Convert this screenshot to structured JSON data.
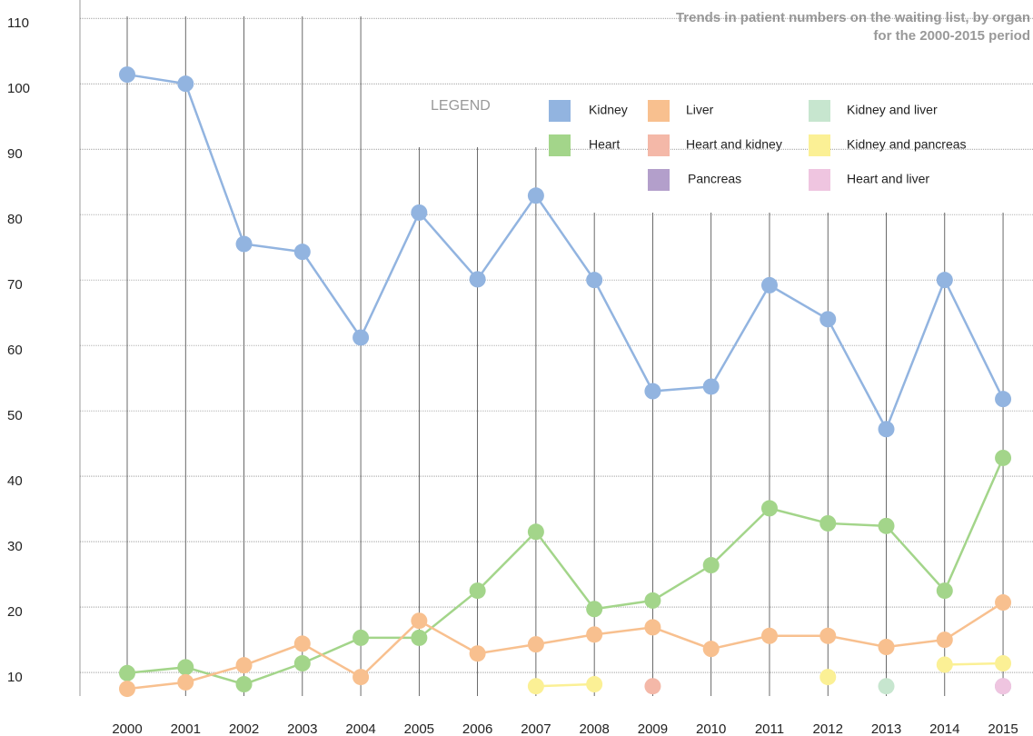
{
  "chart_data": {
    "type": "line",
    "title": "Trends in patient numbers on the waiting list, by organ",
    "subtitle": "for the 2000-2015 period",
    "legend_title": "LEGEND",
    "categories": [
      "2000",
      "2001",
      "2002",
      "2003",
      "2004",
      "2005",
      "2006",
      "2007",
      "2008",
      "2009",
      "2010",
      "2011",
      "2012",
      "2013",
      "2014",
      "2015"
    ],
    "series": [
      {
        "name": "Kidney",
        "color": "#92b4e0",
        "values": [
          101.4,
          100,
          75.5,
          74.3,
          61.2,
          80.3,
          70.1,
          82.9,
          70,
          53,
          53.7,
          69.2,
          64,
          47.2,
          70,
          51.8
        ]
      },
      {
        "name": "Heart",
        "color": "#a3d58a",
        "values": [
          9.9,
          10.8,
          8.2,
          11.4,
          15.3,
          15.3,
          22.5,
          31.5,
          19.7,
          21,
          26.4,
          35.1,
          32.8,
          32.4,
          22.5,
          42.8
        ]
      },
      {
        "name": "Liver",
        "color": "#f8c08f",
        "values": [
          7.5,
          8.5,
          11.1,
          14.4,
          9.3,
          17.9,
          12.9,
          14.3,
          15.8,
          16.9,
          13.6,
          15.6,
          15.6,
          13.9,
          15,
          20.7
        ]
      },
      {
        "name": "Heart and kidney",
        "color": "#f4b8a8",
        "values": [
          null,
          null,
          null,
          null,
          null,
          null,
          null,
          null,
          null,
          7.9,
          null,
          null,
          null,
          null,
          null,
          null
        ]
      },
      {
        "name": "Pancreas",
        "color": "#b39fcb",
        "values": [
          null,
          null,
          null,
          null,
          null,
          null,
          null,
          null,
          null,
          null,
          null,
          null,
          null,
          null,
          null,
          7.9
        ]
      },
      {
        "name": "Kidney and liver",
        "color": "#c7e6cf",
        "values": [
          null,
          null,
          null,
          null,
          null,
          null,
          null,
          null,
          null,
          null,
          null,
          null,
          null,
          7.9,
          null,
          null
        ]
      },
      {
        "name": "Kidney and pancreas",
        "color": "#fbf095",
        "values": [
          null,
          null,
          null,
          null,
          null,
          null,
          null,
          7.9,
          8.2,
          null,
          null,
          null,
          9.3,
          null,
          11.2,
          11.4
        ]
      },
      {
        "name": "Heart and liver",
        "color": "#efc5e0",
        "values": [
          null,
          null,
          null,
          null,
          null,
          null,
          null,
          null,
          null,
          null,
          null,
          null,
          null,
          null,
          null,
          7.9
        ]
      }
    ],
    "ylim": [
      6.4,
      112.8
    ],
    "yticks": [
      10,
      20,
      30,
      40,
      50,
      60,
      70,
      80,
      90,
      100,
      110
    ],
    "grid": true
  }
}
